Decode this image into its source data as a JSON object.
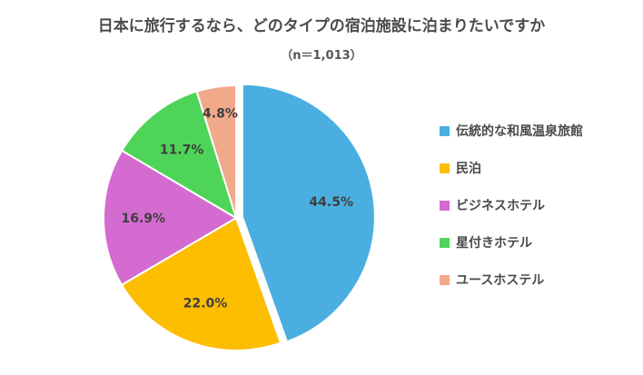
{
  "chart_data": {
    "type": "pie",
    "title": "日本に旅行するなら、どのタイプの宿泊施設に泊まりたいですか",
    "subtitle": "（n＝1,013）",
    "categories": [
      "伝統的な和風温泉旅館",
      "民泊",
      "ビジネスホテル",
      "星付きホテル",
      "ユースホステル"
    ],
    "values": [
      44.5,
      22.0,
      16.9,
      11.7,
      4.8
    ],
    "value_labels": [
      "44.5%",
      "22.0%",
      "16.9%",
      "11.7%",
      "4.8%"
    ],
    "colors": [
      "#4aaee0",
      "#fdbd00",
      "#d46bd0",
      "#4fd45a",
      "#f2a98a"
    ],
    "exploded": [
      "伝統的な和風温泉旅館"
    ],
    "legend_position": "right",
    "start": "12 o'clock, clockwise"
  }
}
